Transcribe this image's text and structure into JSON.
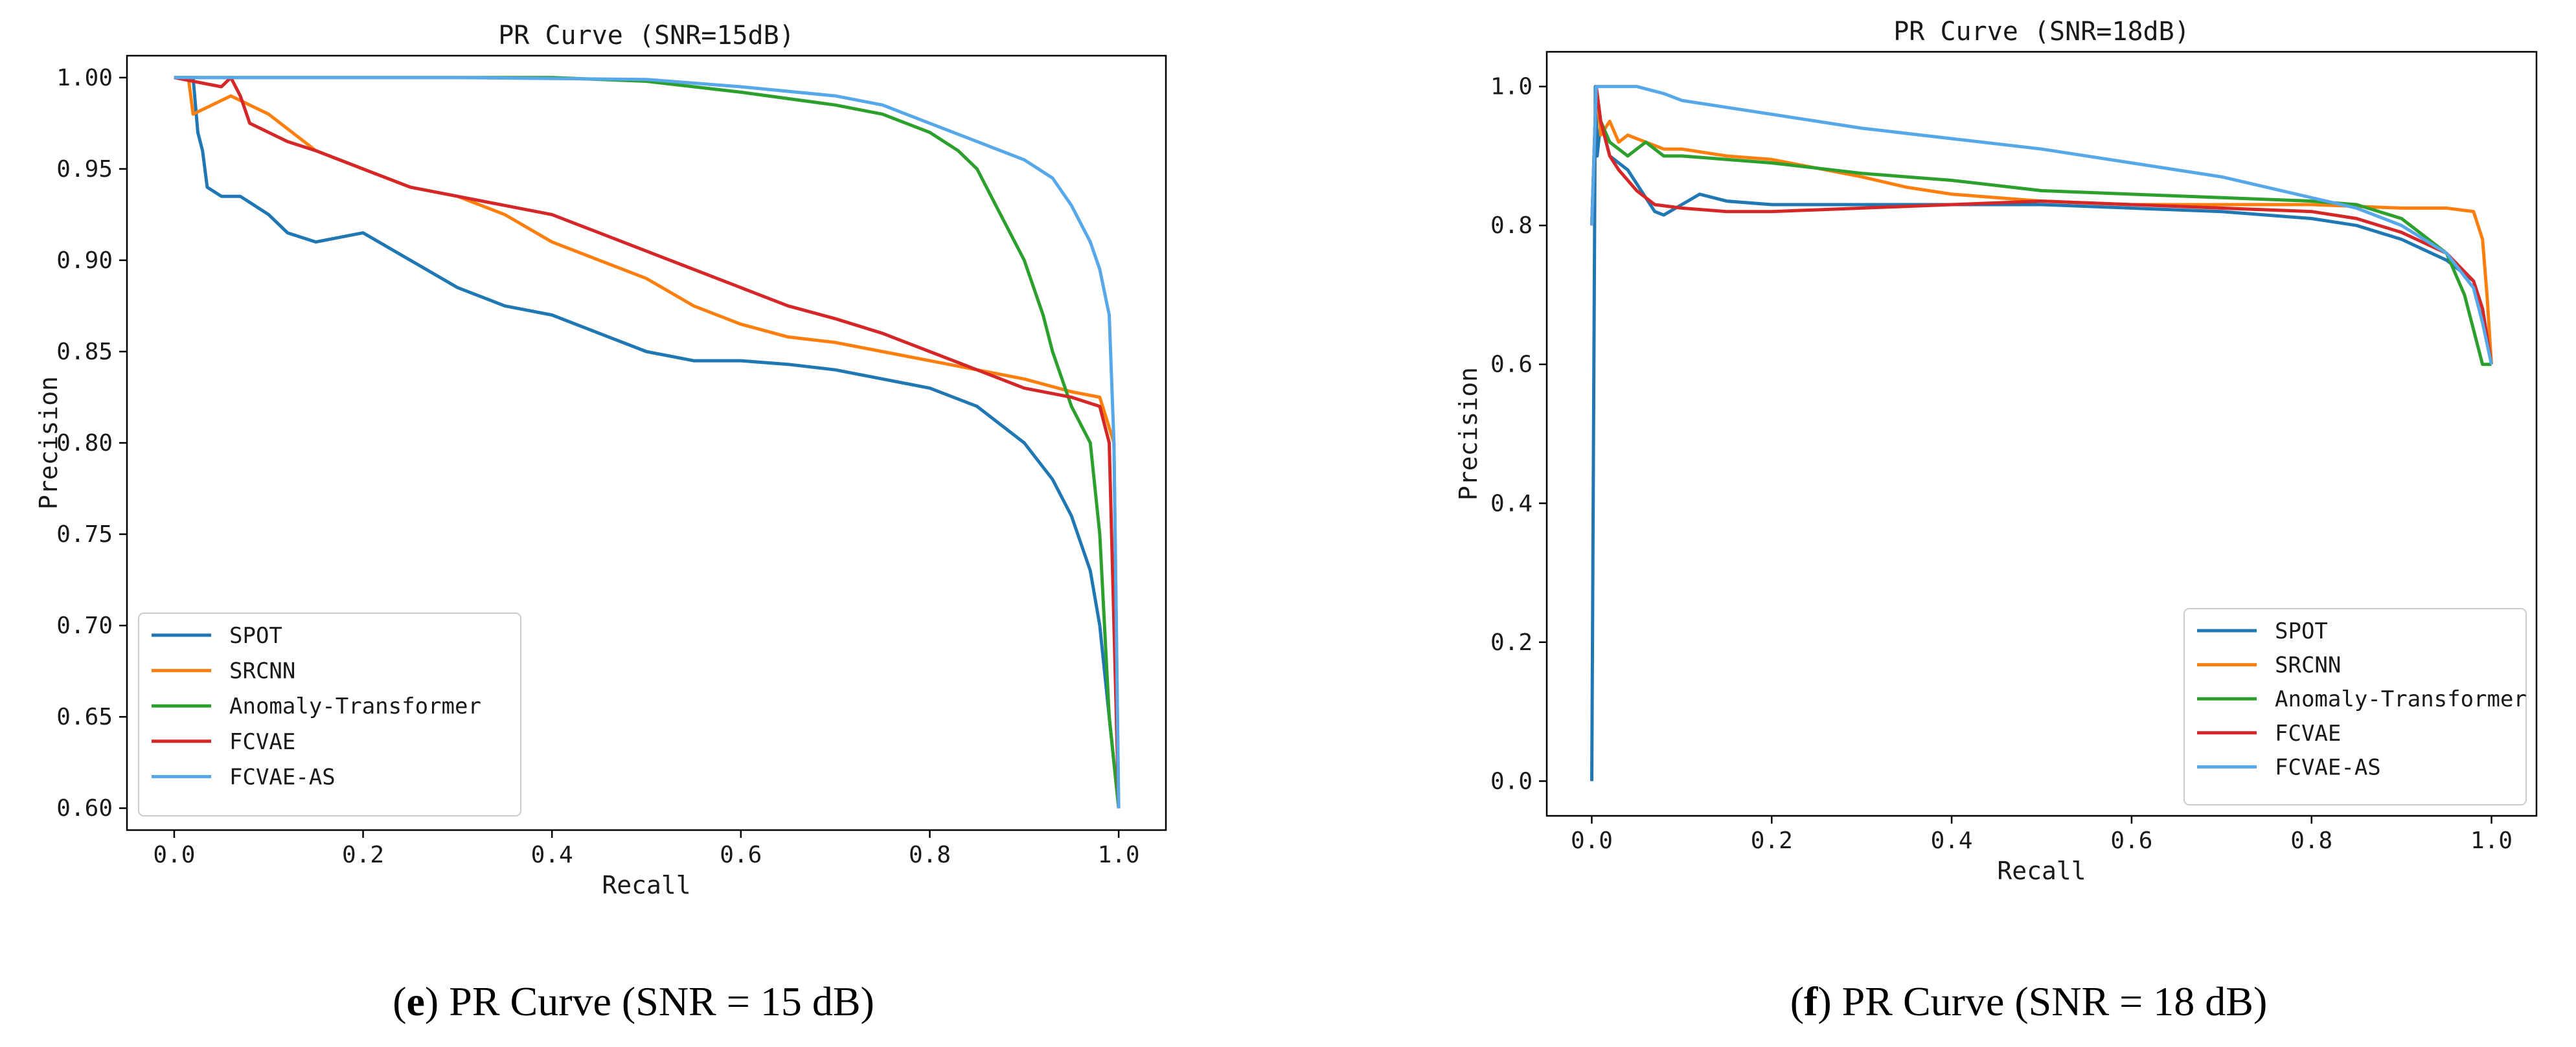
{
  "chart_data": [
    {
      "type": "line",
      "title": "PR Curve (SNR=15dB)",
      "xlabel": "Recall",
      "ylabel": "Precision",
      "xlim": [
        -0.05,
        1.05
      ],
      "ylim": [
        0.588,
        1.012
      ],
      "xticks": [
        0.0,
        0.2,
        0.4,
        0.6,
        0.8,
        1.0
      ],
      "xtick_labels": [
        "0.0",
        "0.2",
        "0.4",
        "0.6",
        "0.8",
        "1.0"
      ],
      "yticks": [
        0.6,
        0.65,
        0.7,
        0.75,
        0.8,
        0.85,
        0.9,
        0.95,
        1.0
      ],
      "ytick_labels": [
        "0.60",
        "0.65",
        "0.70",
        "0.75",
        "0.80",
        "0.85",
        "0.90",
        "0.95",
        "1.00"
      ],
      "legend_position": "lower-left",
      "caption_letter": "e",
      "caption_rest": ") PR Curve (SNR = 15 dB)",
      "series": [
        {
          "name": "SPOT",
          "color": "#1f77b4",
          "x": [
            0.0,
            0.02,
            0.025,
            0.03,
            0.035,
            0.05,
            0.07,
            0.1,
            0.12,
            0.15,
            0.2,
            0.25,
            0.3,
            0.35,
            0.4,
            0.45,
            0.5,
            0.55,
            0.6,
            0.65,
            0.7,
            0.75,
            0.8,
            0.85,
            0.9,
            0.93,
            0.95,
            0.97,
            0.98,
            0.99,
            1.0
          ],
          "y": [
            1.0,
            1.0,
            0.97,
            0.96,
            0.94,
            0.935,
            0.935,
            0.925,
            0.915,
            0.91,
            0.915,
            0.9,
            0.885,
            0.875,
            0.87,
            0.86,
            0.85,
            0.845,
            0.845,
            0.843,
            0.84,
            0.835,
            0.83,
            0.82,
            0.8,
            0.78,
            0.76,
            0.73,
            0.7,
            0.65,
            0.6
          ]
        },
        {
          "name": "SRCNN",
          "color": "#ff7f0e",
          "x": [
            0.0,
            0.015,
            0.02,
            0.04,
            0.06,
            0.08,
            0.1,
            0.15,
            0.2,
            0.25,
            0.3,
            0.35,
            0.4,
            0.45,
            0.5,
            0.55,
            0.6,
            0.65,
            0.7,
            0.75,
            0.8,
            0.85,
            0.9,
            0.95,
            0.98,
            0.995,
            1.0
          ],
          "y": [
            1.0,
            1.0,
            0.98,
            0.985,
            0.99,
            0.985,
            0.98,
            0.96,
            0.95,
            0.94,
            0.935,
            0.925,
            0.91,
            0.9,
            0.89,
            0.875,
            0.865,
            0.858,
            0.855,
            0.85,
            0.845,
            0.84,
            0.835,
            0.828,
            0.825,
            0.8,
            0.6
          ]
        },
        {
          "name": "Anomaly-Transformer",
          "color": "#2ca02c",
          "x": [
            0.0,
            0.2,
            0.4,
            0.5,
            0.6,
            0.7,
            0.75,
            0.8,
            0.83,
            0.85,
            0.87,
            0.9,
            0.92,
            0.93,
            0.95,
            0.97,
            0.98,
            0.99,
            1.0
          ],
          "y": [
            1.0,
            1.0,
            1.0,
            0.998,
            0.992,
            0.985,
            0.98,
            0.97,
            0.96,
            0.95,
            0.93,
            0.9,
            0.87,
            0.85,
            0.82,
            0.8,
            0.75,
            0.65,
            0.6
          ]
        },
        {
          "name": "FCVAE",
          "color": "#d62728",
          "x": [
            0.0,
            0.05,
            0.06,
            0.07,
            0.08,
            0.1,
            0.12,
            0.15,
            0.2,
            0.25,
            0.3,
            0.35,
            0.4,
            0.45,
            0.5,
            0.55,
            0.6,
            0.65,
            0.7,
            0.75,
            0.8,
            0.85,
            0.9,
            0.95,
            0.98,
            0.99,
            1.0
          ],
          "y": [
            1.0,
            0.995,
            1.0,
            0.99,
            0.975,
            0.97,
            0.965,
            0.96,
            0.95,
            0.94,
            0.935,
            0.93,
            0.925,
            0.915,
            0.905,
            0.895,
            0.885,
            0.875,
            0.868,
            0.86,
            0.85,
            0.84,
            0.83,
            0.825,
            0.82,
            0.8,
            0.6
          ]
        },
        {
          "name": "FCVAE-AS",
          "color": "#56a8e8",
          "x": [
            0.0,
            0.3,
            0.5,
            0.6,
            0.7,
            0.75,
            0.8,
            0.85,
            0.9,
            0.93,
            0.95,
            0.97,
            0.98,
            0.99,
            0.995,
            1.0
          ],
          "y": [
            1.0,
            1.0,
            0.999,
            0.995,
            0.99,
            0.985,
            0.975,
            0.965,
            0.955,
            0.945,
            0.93,
            0.91,
            0.895,
            0.87,
            0.8,
            0.6
          ]
        }
      ]
    },
    {
      "type": "line",
      "title": "PR Curve (SNR=18dB)",
      "xlabel": "Recall",
      "ylabel": "Precision",
      "xlim": [
        -0.05,
        1.05
      ],
      "ylim": [
        -0.05,
        1.05
      ],
      "xticks": [
        0.0,
        0.2,
        0.4,
        0.6,
        0.8,
        1.0
      ],
      "xtick_labels": [
        "0.0",
        "0.2",
        "0.4",
        "0.6",
        "0.8",
        "1.0"
      ],
      "yticks": [
        0.0,
        0.2,
        0.4,
        0.6,
        0.8,
        1.0
      ],
      "ytick_labels": [
        "0.0",
        "0.2",
        "0.4",
        "0.6",
        "0.8",
        "1.0"
      ],
      "legend_position": "lower-right",
      "caption_letter": "f",
      "caption_rest": ") PR Curve (SNR = 18 dB)",
      "series": [
        {
          "name": "SPOT",
          "color": "#1f77b4",
          "x": [
            0.0,
            0.002,
            0.004,
            0.006,
            0.01,
            0.02,
            0.04,
            0.06,
            0.07,
            0.08,
            0.1,
            0.12,
            0.15,
            0.2,
            0.3,
            0.4,
            0.5,
            0.6,
            0.7,
            0.8,
            0.85,
            0.9,
            0.95,
            0.98,
            0.99,
            1.0
          ],
          "y": [
            0.0,
            0.5,
            1.0,
            0.9,
            0.95,
            0.9,
            0.88,
            0.84,
            0.82,
            0.815,
            0.83,
            0.845,
            0.835,
            0.83,
            0.83,
            0.83,
            0.83,
            0.825,
            0.82,
            0.81,
            0.8,
            0.78,
            0.75,
            0.72,
            0.68,
            0.6
          ]
        },
        {
          "name": "SRCNN",
          "color": "#ff7f0e",
          "x": [
            0.0,
            0.005,
            0.01,
            0.02,
            0.03,
            0.04,
            0.06,
            0.08,
            0.1,
            0.15,
            0.2,
            0.3,
            0.35,
            0.4,
            0.5,
            0.6,
            0.7,
            0.8,
            0.9,
            0.95,
            0.98,
            0.99,
            0.995,
            1.0
          ],
          "y": [
            0.8,
            1.0,
            0.93,
            0.95,
            0.92,
            0.93,
            0.92,
            0.91,
            0.91,
            0.9,
            0.895,
            0.87,
            0.855,
            0.845,
            0.835,
            0.83,
            0.83,
            0.83,
            0.825,
            0.825,
            0.82,
            0.78,
            0.7,
            0.6
          ]
        },
        {
          "name": "Anomaly-Transformer",
          "color": "#2ca02c",
          "x": [
            0.0,
            0.005,
            0.01,
            0.02,
            0.04,
            0.06,
            0.08,
            0.1,
            0.15,
            0.2,
            0.3,
            0.4,
            0.5,
            0.6,
            0.7,
            0.8,
            0.85,
            0.9,
            0.95,
            0.97,
            0.98,
            0.99,
            1.0
          ],
          "y": [
            0.8,
            1.0,
            0.95,
            0.92,
            0.9,
            0.92,
            0.9,
            0.9,
            0.895,
            0.89,
            0.875,
            0.865,
            0.85,
            0.845,
            0.84,
            0.835,
            0.83,
            0.81,
            0.76,
            0.7,
            0.65,
            0.6,
            0.6
          ]
        },
        {
          "name": "FCVAE",
          "color": "#d62728",
          "x": [
            0.0,
            0.005,
            0.01,
            0.02,
            0.03,
            0.05,
            0.07,
            0.1,
            0.15,
            0.2,
            0.3,
            0.4,
            0.5,
            0.6,
            0.7,
            0.8,
            0.85,
            0.9,
            0.95,
            0.98,
            0.99,
            1.0
          ],
          "y": [
            0.8,
            1.0,
            0.95,
            0.9,
            0.88,
            0.85,
            0.83,
            0.825,
            0.82,
            0.82,
            0.825,
            0.83,
            0.835,
            0.83,
            0.825,
            0.82,
            0.81,
            0.79,
            0.76,
            0.72,
            0.68,
            0.6
          ]
        },
        {
          "name": "FCVAE-AS",
          "color": "#56a8e8",
          "x": [
            0.0,
            0.005,
            0.05,
            0.08,
            0.1,
            0.15,
            0.2,
            0.3,
            0.4,
            0.5,
            0.6,
            0.7,
            0.8,
            0.85,
            0.9,
            0.95,
            0.98,
            0.99,
            1.0
          ],
          "y": [
            0.8,
            1.0,
            1.0,
            0.99,
            0.98,
            0.97,
            0.96,
            0.94,
            0.925,
            0.91,
            0.89,
            0.87,
            0.84,
            0.825,
            0.8,
            0.76,
            0.71,
            0.66,
            0.6
          ]
        }
      ]
    }
  ]
}
